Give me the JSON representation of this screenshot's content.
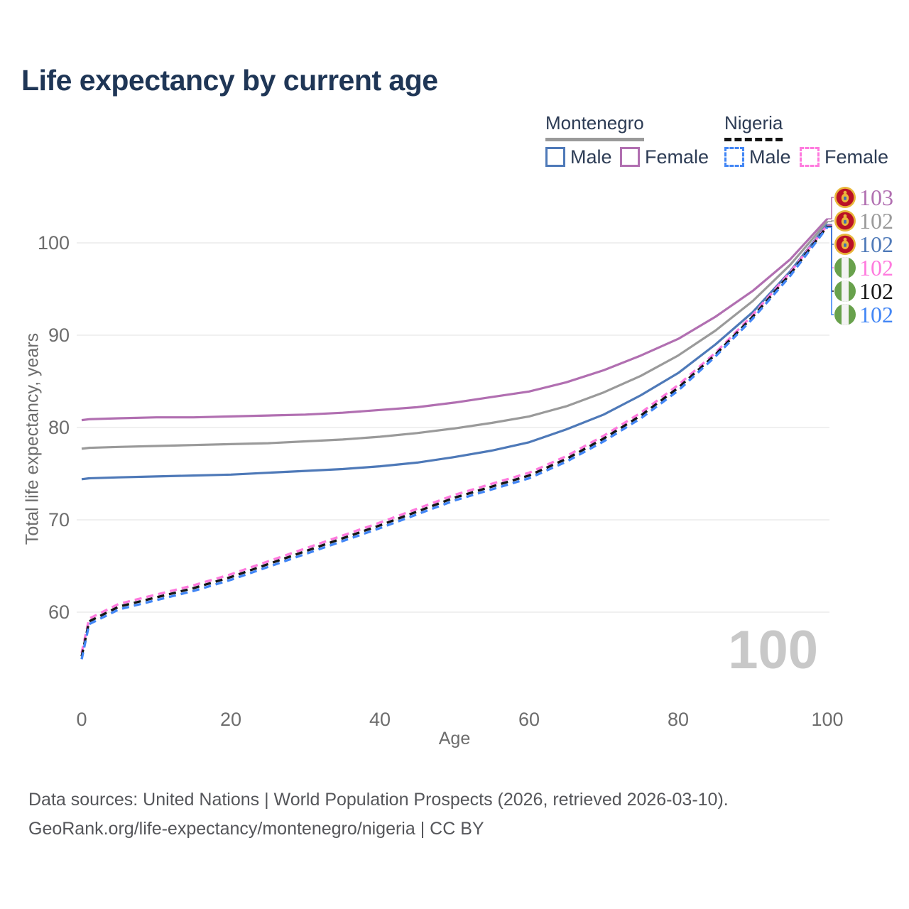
{
  "title": "Life expectancy by current age",
  "legend": {
    "groups": [
      {
        "label": "Montenegro",
        "underline": "solid",
        "underline_color": "#9a9a9a",
        "items": [
          {
            "label": "Male",
            "color": "#4e79b8",
            "box": "solid"
          },
          {
            "label": "Female",
            "color": "#b16fb1",
            "box": "solid"
          }
        ]
      },
      {
        "label": "Nigeria",
        "underline": "dashed",
        "underline_color": "#161616",
        "items": [
          {
            "label": "Male",
            "color": "#4286f5",
            "box": "dashed"
          },
          {
            "label": "Female",
            "color": "#ff7ade",
            "box": "dashed"
          }
        ]
      }
    ]
  },
  "chart_data": {
    "type": "line",
    "title": "Life expectancy by current age",
    "xlabel": "Age",
    "ylabel": "Total life expectancy, years",
    "xticks": [
      0,
      20,
      40,
      60,
      80,
      100
    ],
    "yticks": [
      60,
      70,
      80,
      90,
      100
    ],
    "xlim": [
      0,
      100
    ],
    "ylim": [
      54,
      104
    ],
    "grid": true,
    "legend_position": "top-right",
    "watermark": "100",
    "x": [
      0,
      1,
      5,
      10,
      15,
      20,
      25,
      30,
      35,
      40,
      45,
      50,
      55,
      60,
      65,
      70,
      75,
      80,
      85,
      90,
      95,
      100
    ],
    "series": [
      {
        "name": "Montenegro Female",
        "country": "Montenegro",
        "sex": "Female",
        "color": "#b16fb1",
        "dash": "solid",
        "flag": "montenegro",
        "end_label": "103",
        "values": [
          80.8,
          80.9,
          81.0,
          81.1,
          81.1,
          81.2,
          81.3,
          81.4,
          81.6,
          81.9,
          82.2,
          82.7,
          83.3,
          83.9,
          84.9,
          86.2,
          87.8,
          89.6,
          92.0,
          94.8,
          98.2,
          102.6
        ]
      },
      {
        "name": "Montenegro Total",
        "country": "Montenegro",
        "sex": "Both",
        "color": "#9a9a9a",
        "dash": "solid",
        "flag": "montenegro",
        "end_label": "102",
        "values": [
          77.7,
          77.8,
          77.9,
          78.0,
          78.1,
          78.2,
          78.3,
          78.5,
          78.7,
          79.0,
          79.4,
          79.9,
          80.5,
          81.2,
          82.3,
          83.8,
          85.6,
          87.8,
          90.5,
          93.7,
          97.6,
          102.3
        ]
      },
      {
        "name": "Montenegro Male",
        "country": "Montenegro",
        "sex": "Male",
        "color": "#4e79b8",
        "dash": "solid",
        "flag": "montenegro",
        "end_label": "102",
        "values": [
          74.4,
          74.5,
          74.6,
          74.7,
          74.8,
          74.9,
          75.1,
          75.3,
          75.5,
          75.8,
          76.2,
          76.8,
          77.5,
          78.4,
          79.8,
          81.4,
          83.5,
          85.9,
          89.0,
          92.5,
          96.9,
          102.0
        ]
      },
      {
        "name": "Nigeria Female",
        "country": "Nigeria",
        "sex": "Female",
        "color": "#ff7ade",
        "dash": "dashed",
        "flag": "nigeria",
        "end_label": "102",
        "values": [
          55.6,
          59.3,
          60.9,
          61.9,
          62.9,
          64.1,
          65.5,
          66.9,
          68.3,
          69.7,
          71.2,
          72.7,
          73.9,
          75.1,
          76.9,
          79.1,
          81.6,
          84.6,
          88.1,
          92.2,
          96.8,
          101.9
        ]
      },
      {
        "name": "Nigeria Total",
        "country": "Nigeria",
        "sex": "Both",
        "color": "#161616",
        "dash": "dashed",
        "flag": "nigeria",
        "end_label": "102",
        "values": [
          55.2,
          59.0,
          60.6,
          61.6,
          62.6,
          63.8,
          65.2,
          66.6,
          68.0,
          69.4,
          70.9,
          72.4,
          73.6,
          74.8,
          76.6,
          78.8,
          81.3,
          84.3,
          87.9,
          92.0,
          96.6,
          101.8
        ]
      },
      {
        "name": "Nigeria Male",
        "country": "Nigeria",
        "sex": "Male",
        "color": "#4286f5",
        "dash": "dashed",
        "flag": "nigeria",
        "end_label": "102",
        "values": [
          54.9,
          58.7,
          60.3,
          61.3,
          62.3,
          63.5,
          64.9,
          66.3,
          67.7,
          69.1,
          70.6,
          72.1,
          73.3,
          74.5,
          76.3,
          78.5,
          81.0,
          84.0,
          87.7,
          91.8,
          96.4,
          101.7
        ]
      }
    ],
    "flag_colors": {
      "montenegro_ring": "#e9b63b",
      "montenegro_field": "#ba1126",
      "montenegro_shield": "#3f6fb5",
      "nigeria_green": "#68a14c",
      "nigeria_white": "#f3f3f3"
    }
  },
  "footer": {
    "line1": "Data sources: United Nations | World Population Prospects (2026, retrieved 2026-03-10).",
    "line2": "GeoRank.org/life-expectancy/montenegro/nigeria | CC BY"
  }
}
